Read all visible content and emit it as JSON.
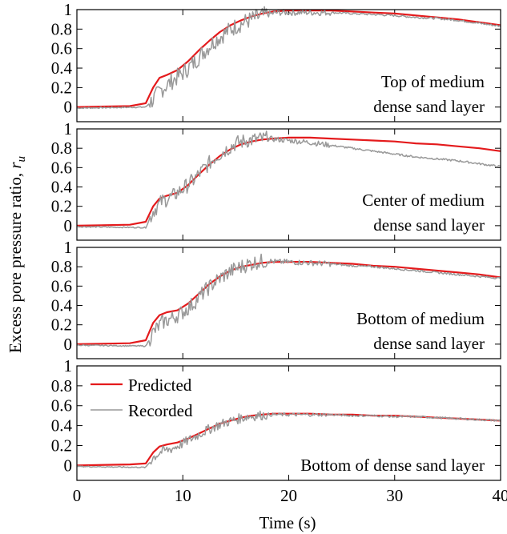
{
  "figure": {
    "ylabel": "Excess pore pressure ratio, ",
    "ylabel_sym": "r",
    "ylabel_sub": "u",
    "xlabel": "Time (s)",
    "legend": [
      {
        "label": "Predicted",
        "color": "#e41a1c"
      },
      {
        "label": "Recorded",
        "color": "#999999"
      }
    ]
  },
  "chart_data": [
    {
      "type": "line",
      "panel_label": [
        "Top of medium",
        "dense sand layer"
      ],
      "xlim": [
        0,
        40
      ],
      "ylim": [
        -0.15,
        1.0
      ],
      "xticks": [
        "0",
        "10",
        "20",
        "30",
        "40"
      ],
      "yticks": [
        "0",
        "0.2",
        "0.4",
        "0.6",
        "0.8",
        "1"
      ],
      "series": [
        {
          "name": "Predicted",
          "color": "#e41a1c",
          "x": [
            0,
            5,
            6.5,
            7.2,
            7.8,
            8.5,
            9.5,
            10.5,
            11.5,
            12.5,
            13.5,
            14.5,
            15.5,
            16.5,
            17.5,
            18.5,
            20,
            22,
            24,
            26,
            28,
            30,
            32,
            34,
            36,
            38,
            40
          ],
          "y": [
            0.0,
            0.01,
            0.04,
            0.2,
            0.3,
            0.33,
            0.38,
            0.47,
            0.58,
            0.68,
            0.77,
            0.84,
            0.89,
            0.93,
            0.96,
            0.98,
            0.99,
            0.99,
            0.99,
            0.98,
            0.97,
            0.96,
            0.94,
            0.92,
            0.9,
            0.87,
            0.84
          ]
        },
        {
          "name": "Recorded",
          "color": "#999999",
          "x": [
            0,
            6.5,
            7.2,
            8.0,
            9.0,
            10.0,
            11.0,
            12.0,
            13.0,
            14.0,
            15.0,
            16.0,
            17.0,
            18.0,
            19.0,
            20,
            22,
            24,
            26,
            28,
            30,
            32,
            34,
            36,
            38,
            40
          ],
          "y": [
            -0.01,
            0.0,
            0.08,
            0.18,
            0.27,
            0.35,
            0.45,
            0.57,
            0.68,
            0.76,
            0.83,
            0.88,
            0.92,
            0.95,
            0.97,
            0.97,
            0.97,
            0.97,
            0.96,
            0.95,
            0.94,
            0.92,
            0.91,
            0.89,
            0.86,
            0.83
          ],
          "noise": 0.09
        }
      ]
    },
    {
      "type": "line",
      "panel_label": [
        "Center of medium",
        "dense sand layer"
      ],
      "xlim": [
        0,
        40
      ],
      "ylim": [
        -0.15,
        1.0
      ],
      "xticks": [
        "0",
        "10",
        "20",
        "30",
        "40"
      ],
      "yticks": [
        "0",
        "0.2",
        "0.4",
        "0.6",
        "0.8",
        "1"
      ],
      "series": [
        {
          "name": "Predicted",
          "color": "#e41a1c",
          "x": [
            0,
            5,
            6.5,
            7.2,
            7.8,
            8.5,
            9.5,
            10.5,
            11.5,
            12.5,
            13.5,
            14.5,
            15.5,
            16.5,
            17.5,
            18.5,
            20,
            22,
            24,
            26,
            28,
            30,
            32,
            34,
            36,
            38,
            40
          ],
          "y": [
            0.0,
            0.01,
            0.04,
            0.2,
            0.28,
            0.31,
            0.34,
            0.42,
            0.53,
            0.63,
            0.72,
            0.79,
            0.84,
            0.87,
            0.89,
            0.9,
            0.91,
            0.91,
            0.9,
            0.89,
            0.88,
            0.87,
            0.85,
            0.84,
            0.82,
            0.8,
            0.77
          ]
        },
        {
          "name": "Recorded",
          "color": "#999999",
          "x": [
            0,
            6.5,
            7.2,
            8.0,
            9.0,
            10.0,
            11.0,
            12.0,
            13.0,
            14.0,
            15.0,
            16.0,
            17.0,
            18.0,
            19.0,
            20,
            22,
            24,
            26,
            28,
            30,
            32,
            34,
            36,
            38,
            40
          ],
          "y": [
            -0.01,
            -0.02,
            0.15,
            0.25,
            0.3,
            0.38,
            0.47,
            0.59,
            0.7,
            0.78,
            0.85,
            0.88,
            0.89,
            0.9,
            0.89,
            0.88,
            0.86,
            0.83,
            0.8,
            0.77,
            0.74,
            0.71,
            0.69,
            0.67,
            0.64,
            0.61
          ],
          "noise": 0.08
        }
      ]
    },
    {
      "type": "line",
      "panel_label": [
        "Bottom of medium",
        "dense sand layer"
      ],
      "xlim": [
        0,
        40
      ],
      "ylim": [
        -0.15,
        1.0
      ],
      "xticks": [
        "0",
        "10",
        "20",
        "30",
        "40"
      ],
      "yticks": [
        "0",
        "0.2",
        "0.4",
        "0.6",
        "0.8",
        "1"
      ],
      "series": [
        {
          "name": "Predicted",
          "color": "#e41a1c",
          "x": [
            0,
            5,
            6.5,
            7.2,
            7.8,
            8.5,
            9.5,
            10.5,
            11.5,
            12.5,
            13.5,
            14.5,
            15.5,
            16.5,
            17.5,
            18.5,
            20,
            22,
            24,
            26,
            28,
            30,
            32,
            34,
            36,
            38,
            40
          ],
          "y": [
            0.0,
            0.01,
            0.04,
            0.22,
            0.3,
            0.33,
            0.35,
            0.42,
            0.52,
            0.62,
            0.7,
            0.76,
            0.8,
            0.82,
            0.84,
            0.85,
            0.85,
            0.85,
            0.84,
            0.83,
            0.81,
            0.8,
            0.78,
            0.76,
            0.74,
            0.72,
            0.69
          ]
        },
        {
          "name": "Recorded",
          "color": "#999999",
          "x": [
            0,
            6.5,
            7.2,
            8.0,
            9.0,
            10.0,
            11.0,
            12.0,
            13.0,
            14.0,
            15.0,
            16.0,
            17.0,
            18.0,
            19.0,
            20,
            22,
            24,
            26,
            28,
            30,
            32,
            34,
            36,
            38,
            40
          ],
          "y": [
            -0.01,
            -0.02,
            0.12,
            0.22,
            0.27,
            0.33,
            0.42,
            0.54,
            0.64,
            0.72,
            0.78,
            0.82,
            0.85,
            0.86,
            0.85,
            0.85,
            0.84,
            0.83,
            0.81,
            0.8,
            0.78,
            0.76,
            0.74,
            0.72,
            0.7,
            0.68
          ],
          "noise": 0.08
        }
      ]
    },
    {
      "type": "line",
      "panel_label": [
        "Bottom of dense sand layer"
      ],
      "xlim": [
        0,
        40
      ],
      "ylim": [
        -0.15,
        1.0
      ],
      "xticks": [
        "0",
        "10",
        "20",
        "30",
        "40"
      ],
      "yticks": [
        "0",
        "0.2",
        "0.4",
        "0.6",
        "0.8",
        "1"
      ],
      "series": [
        {
          "name": "Predicted",
          "color": "#e41a1c",
          "x": [
            0,
            5,
            6.5,
            7.2,
            7.8,
            8.5,
            9.5,
            10.5,
            11.5,
            12.5,
            13.5,
            14.5,
            15.5,
            16.5,
            17.5,
            18.5,
            20,
            22,
            24,
            26,
            28,
            30,
            32,
            34,
            36,
            38,
            40
          ],
          "y": [
            0.0,
            0.01,
            0.02,
            0.13,
            0.19,
            0.21,
            0.23,
            0.27,
            0.32,
            0.37,
            0.42,
            0.45,
            0.48,
            0.5,
            0.51,
            0.52,
            0.52,
            0.52,
            0.51,
            0.51,
            0.5,
            0.5,
            0.49,
            0.48,
            0.47,
            0.46,
            0.45
          ]
        },
        {
          "name": "Recorded",
          "color": "#999999",
          "x": [
            0,
            6.5,
            7.2,
            8.0,
            9.0,
            10.0,
            11.0,
            12.0,
            13.0,
            14.0,
            15.0,
            16.0,
            17.0,
            18.0,
            19.0,
            20,
            22,
            24,
            26,
            28,
            30,
            32,
            34,
            36,
            38,
            40
          ],
          "y": [
            -0.01,
            -0.02,
            0.08,
            0.14,
            0.17,
            0.22,
            0.28,
            0.34,
            0.39,
            0.43,
            0.46,
            0.49,
            0.5,
            0.51,
            0.51,
            0.51,
            0.51,
            0.51,
            0.5,
            0.5,
            0.49,
            0.49,
            0.48,
            0.47,
            0.46,
            0.45
          ],
          "noise": 0.05
        }
      ]
    }
  ]
}
